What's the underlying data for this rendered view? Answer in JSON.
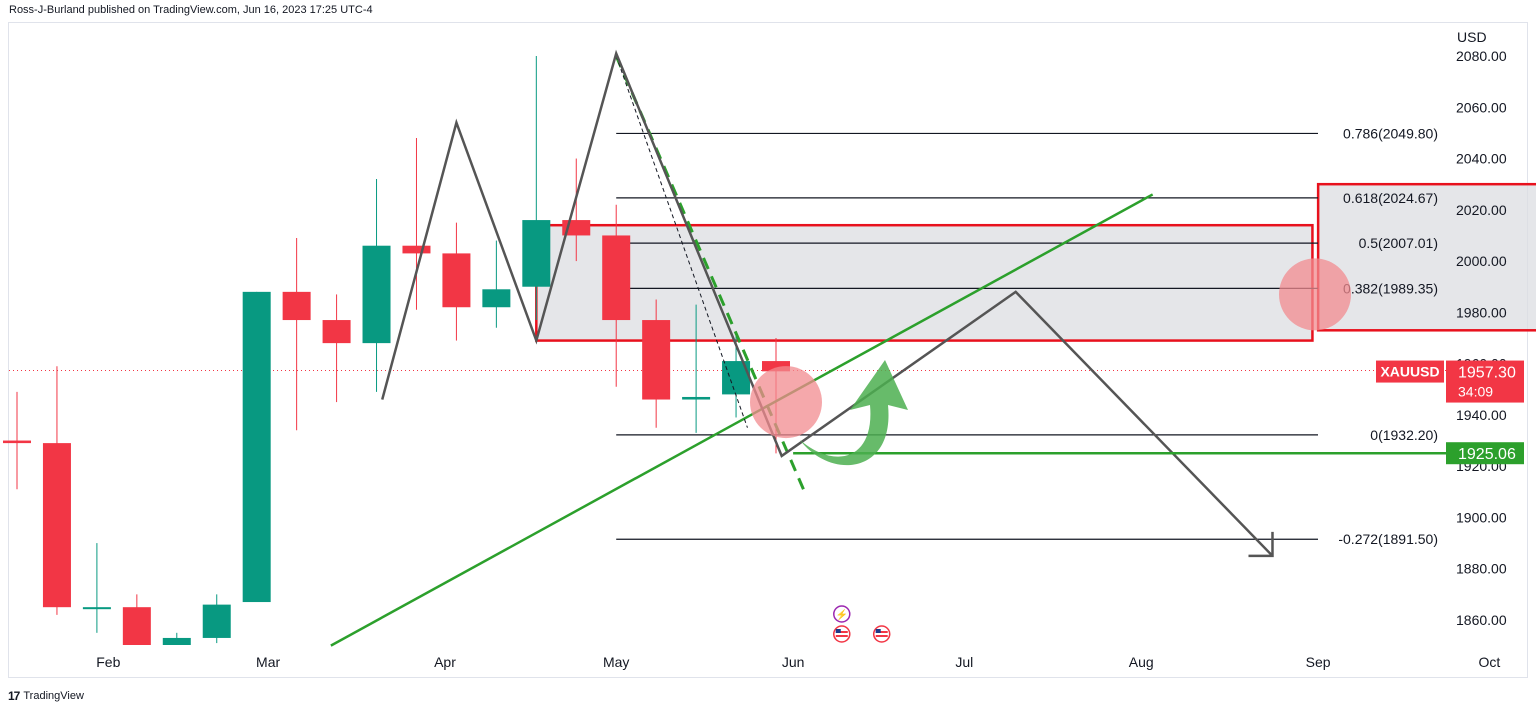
{
  "header": {
    "publisher_line": "Ross-J-Burland published on TradingView.com, Jun 16, 2023 17:25 UTC-4"
  },
  "footer": {
    "brand": "TradingView",
    "logo_glyph": "17"
  },
  "colors": {
    "bull": "#089981",
    "bear": "#f23645",
    "trend_green": "#2ca02c",
    "zone_fill": "#dcdde2",
    "zone_border": "#e8111d",
    "pattern_line": "#555555",
    "circle_fill": "#f28b8f",
    "arrow_green": "#4caf50"
  },
  "chart_data": {
    "type": "candlestick",
    "symbol": "XAUUSD",
    "currency": "USD",
    "ylim": [
      1848,
      2086
    ],
    "y_ticks": [
      "2080.00",
      "2060.00",
      "2040.00",
      "2020.00",
      "2000.00",
      "1980.00",
      "1960.00",
      "1940.00",
      "1920.00",
      "1900.00",
      "1880.00",
      "1860.00"
    ],
    "x_ticks": [
      "Feb",
      "Mar",
      "Apr",
      "May",
      "Jun",
      "Jul",
      "Aug",
      "Sep",
      "Oct"
    ],
    "x_tick_dates": [
      "2023-02-01",
      "2023-03-01",
      "2023-04-01",
      "2023-05-01",
      "2023-06-01",
      "2023-07-01",
      "2023-08-01",
      "2023-09-01",
      "2023-10-01"
    ],
    "candles": [
      {
        "date": "2023-01-16",
        "open": 1930,
        "high": 1949,
        "low": 1911,
        "close": 1929
      },
      {
        "date": "2023-01-23",
        "open": 1929,
        "high": 1959,
        "low": 1862,
        "close": 1865
      },
      {
        "date": "2023-01-30",
        "open": 1865,
        "high": 1890,
        "low": 1855,
        "close": 1865
      },
      {
        "date": "2023-02-06",
        "open": 1865,
        "high": 1870,
        "low": 1848,
        "close": 1850
      },
      {
        "date": "2023-02-13",
        "open": 1850,
        "high": 1855,
        "low": 1846,
        "close": 1853
      },
      {
        "date": "2023-02-20",
        "open": 1853,
        "high": 1870,
        "low": 1851,
        "close": 1866
      },
      {
        "date": "2023-02-27",
        "open": 1867,
        "high": 1988,
        "low": 1867,
        "close": 1988
      },
      {
        "date": "2023-03-06",
        "open": 1988,
        "high": 2009,
        "low": 1934,
        "close": 1977
      },
      {
        "date": "2023-03-13",
        "open": 1977,
        "high": 1987,
        "low": 1945,
        "close": 1968
      },
      {
        "date": "2023-03-20",
        "open": 1968,
        "high": 2032,
        "low": 1949,
        "close": 2006
      },
      {
        "date": "2023-03-27",
        "open": 2006,
        "high": 2048,
        "low": 1981,
        "close": 2003
      },
      {
        "date": "2023-04-03",
        "open": 2003,
        "high": 2015,
        "low": 1969,
        "close": 1982
      },
      {
        "date": "2023-04-10",
        "open": 1982,
        "high": 2008,
        "low": 1974,
        "close": 1989
      },
      {
        "date": "2023-04-17",
        "open": 1990,
        "high": 2080,
        "low": 1977,
        "close": 2016
      },
      {
        "date": "2023-04-24",
        "open": 2016,
        "high": 2040,
        "low": 2000,
        "close": 2010
      },
      {
        "date": "2023-05-01",
        "open": 2010,
        "high": 2022,
        "low": 1951,
        "close": 1977
      },
      {
        "date": "2023-05-08",
        "open": 1977,
        "high": 1985,
        "low": 1935,
        "close": 1946
      },
      {
        "date": "2023-05-15",
        "open": 1946,
        "high": 1983,
        "low": 1933,
        "close": 1947
      },
      {
        "date": "2023-05-22",
        "open": 1948,
        "high": 1972,
        "low": 1939,
        "close": 1961
      },
      {
        "date": "2023-05-29",
        "open": 1961,
        "high": 1970,
        "low": 1925,
        "close": 1957
      }
    ],
    "fib_levels": [
      {
        "label": "0.786(2049.80)",
        "ratio": 0.786,
        "price": 2049.8
      },
      {
        "label": "0.618(2024.67)",
        "ratio": 0.618,
        "price": 2024.67
      },
      {
        "label": "0.5(2007.01)",
        "ratio": 0.5,
        "price": 2007.01
      },
      {
        "label": "0.382(1989.35)",
        "ratio": 0.382,
        "price": 1989.35
      },
      {
        "label": "0(1932.20)",
        "ratio": 0,
        "price": 1932.2
      },
      {
        "label": "-0.272(1891.50)",
        "ratio": -0.272,
        "price": 1891.5
      }
    ],
    "price_labels": {
      "symbol_label": "XAUUSD",
      "last_price": "1957.30",
      "countdown": "34:09",
      "support_price": "1925.06",
      "last_price_value": 1957.3,
      "support_value": 1925.06
    },
    "zones": [
      {
        "name": "supply-zone",
        "from_date": "2023-04-17",
        "to_date": "2023-08-31",
        "top": 2014,
        "bottom": 1969
      },
      {
        "name": "target-zone",
        "from_date": "2023-09-01",
        "to_date": "2023-10-13",
        "top": 2030,
        "bottom": 1973
      }
    ],
    "pattern_points": [
      {
        "date": "2023-03-21",
        "price": 1946
      },
      {
        "date": "2023-04-03",
        "price": 2054
      },
      {
        "date": "2023-04-17",
        "price": 1969
      },
      {
        "date": "2023-05-01",
        "price": 2081
      },
      {
        "date": "2023-05-30",
        "price": 1924
      },
      {
        "date": "2023-07-10",
        "price": 1988
      },
      {
        "date": "2023-08-24",
        "price": 1885
      }
    ],
    "trendline": {
      "from": {
        "date": "2023-03-12",
        "price": 1850
      },
      "to": {
        "date": "2023-08-03",
        "price": 2026
      }
    },
    "dashed_trend": {
      "from": {
        "date": "2023-05-01",
        "price": 2080
      },
      "to": {
        "date": "2023-06-03",
        "price": 1910
      }
    },
    "events": [
      {
        "date": "2023-06-09",
        "type": "flash"
      },
      {
        "date": "2023-06-09",
        "type": "us-flag"
      },
      {
        "date": "2023-06-16",
        "type": "us-flag"
      }
    ]
  }
}
